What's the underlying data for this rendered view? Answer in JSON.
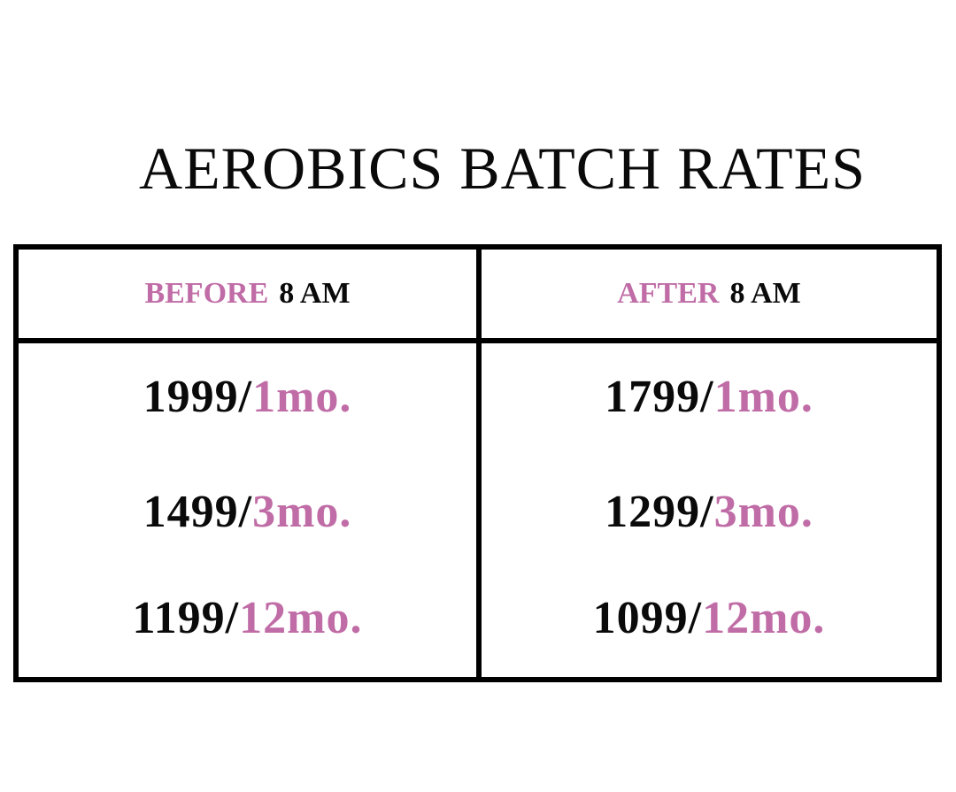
{
  "header": {
    "title": "AEROBICS BATCH RATES"
  },
  "table": {
    "headers": [
      [
        "BEFORE",
        "8 AM"
      ],
      [
        "AFTER",
        "8 AM"
      ]
    ],
    "rows": [
      [
        [
          "1999/",
          "1mo."
        ],
        [
          "1799/",
          "1mo."
        ]
      ],
      [
        [
          "1499/",
          "3mo."
        ],
        [
          "1299/",
          "3mo."
        ]
      ],
      [
        [
          "1199/",
          "12mo."
        ],
        [
          "1099/",
          "12mo."
        ]
      ]
    ]
  }
}
